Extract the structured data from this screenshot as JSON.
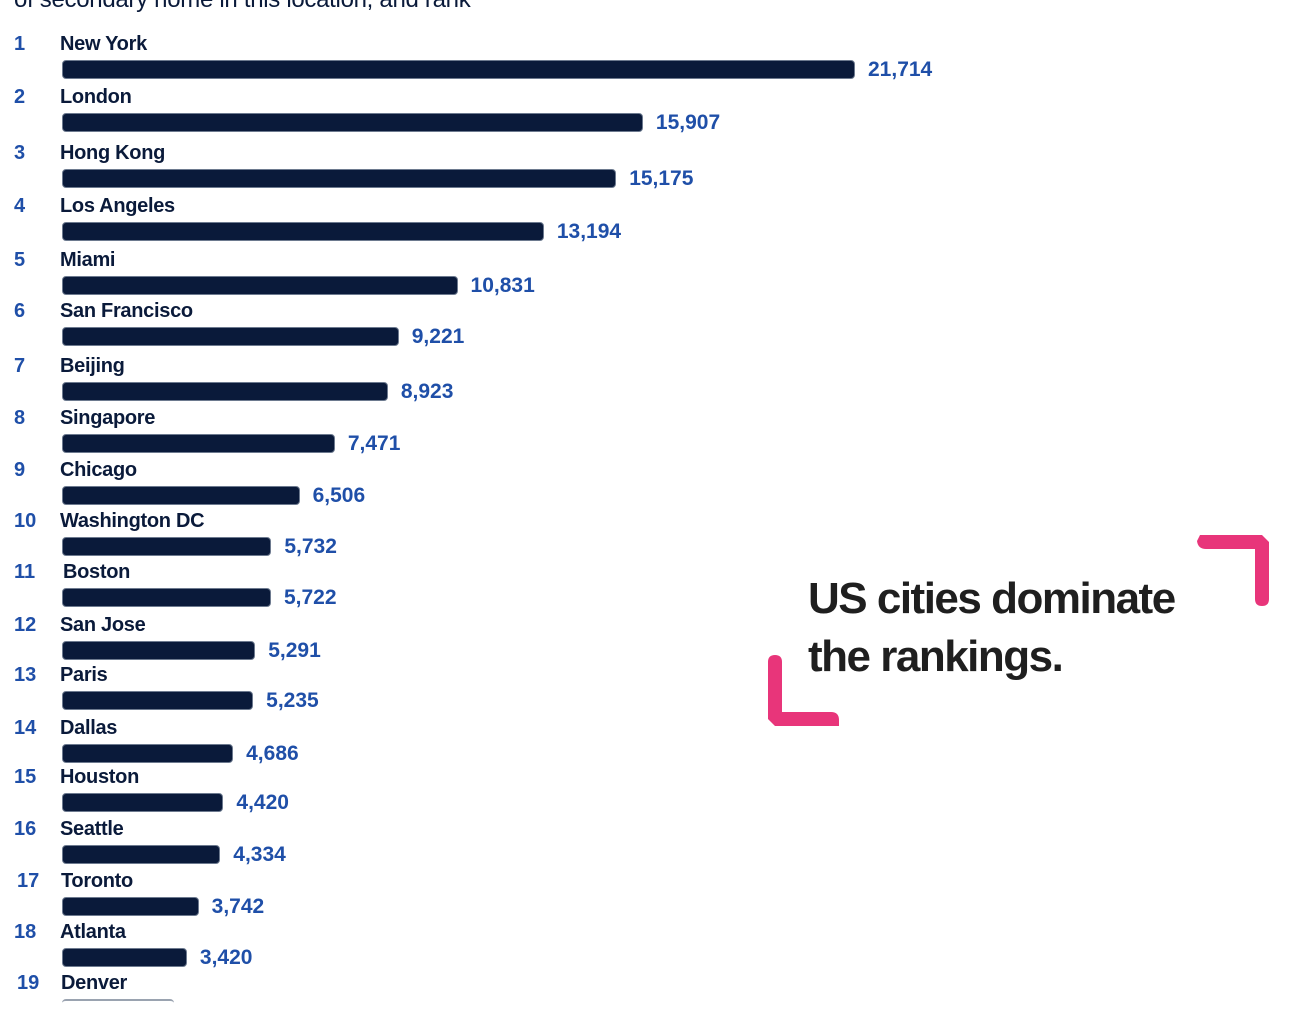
{
  "subtitle": "of secondary home in this location, and rank",
  "callout": {
    "line1": "US cities dominate",
    "line2": "the rankings.",
    "accent_color": "#e8357a"
  },
  "colors": {
    "bar": "#0a1a3a",
    "value": "#1f4fa8",
    "rank": "#1f4fa8",
    "label": "#0a1a3a"
  },
  "chart_data": {
    "type": "bar",
    "orientation": "horizontal",
    "title": "",
    "xlabel": "",
    "ylabel": "",
    "xlim": [
      0,
      21714
    ],
    "grid": false,
    "categories": [
      "New York",
      "London",
      "Hong Kong",
      "Los Angeles",
      "Miami",
      "San Francisco",
      "Beijing",
      "Singapore",
      "Chicago",
      "Washington DC",
      "Boston",
      "San Jose",
      "Paris",
      "Dallas",
      "Houston",
      "Seattle",
      "Toronto",
      "Atlanta",
      "Denver"
    ],
    "ranks": [
      "1",
      "2",
      "3",
      "4",
      "5",
      "6",
      "7",
      "8",
      "9",
      "10",
      "11",
      "12",
      "13",
      "14",
      "15",
      "16",
      "17",
      "18",
      "19"
    ],
    "values": [
      21714,
      15907,
      15175,
      13194,
      10831,
      9221,
      8923,
      7471,
      6506,
      5732,
      5722,
      5291,
      5235,
      4686,
      4420,
      4334,
      3742,
      3420,
      null
    ],
    "value_labels": [
      "21,714",
      "15,907",
      "15,175",
      "13,194",
      "10,831",
      "9,221",
      "8,923",
      "7,471",
      "6,506",
      "5,732",
      "5,722",
      "5,291",
      "5,235",
      "4,686",
      "4,420",
      "4,334",
      "3,742",
      "3,420",
      null
    ]
  }
}
